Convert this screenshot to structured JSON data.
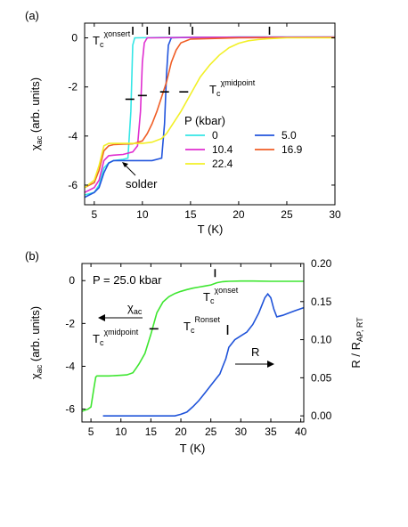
{
  "chart_data": [
    {
      "panel_label": "(a)",
      "type": "line",
      "xlabel": "T (K)",
      "ylabel": "χ_ac (arb. units)",
      "xlim": [
        4,
        30
      ],
      "ylim": [
        -6.8,
        0.6
      ],
      "xticks": [
        5,
        10,
        15,
        20,
        25,
        30
      ],
      "yticks": [
        0,
        -2,
        -4,
        -6
      ],
      "legend_title": "P (kbar)",
      "legend_position": "center-right",
      "annotations": {
        "tc_onset_base": "T",
        "tc_onset_sub": "c",
        "tc_onset_sup": "χonsert",
        "tc_mid_base": "T",
        "tc_mid_sub": "c",
        "tc_mid_sup": "χmidpoint",
        "solder": "solder"
      },
      "onset_marks_T": [
        9.0,
        10.5,
        12.8,
        15.2,
        23.2
      ],
      "midpoint_marks": [
        [
          8.7,
          -2.5
        ],
        [
          10.0,
          -2.35
        ],
        [
          12.3,
          -2.2
        ],
        [
          14.3,
          -2.2
        ]
      ],
      "series": [
        {
          "name": "0",
          "color": "#35e6e6",
          "x": [
            4,
            5,
            5.5,
            6,
            6.5,
            7,
            8,
            8.5,
            8.8,
            9.0,
            9.2,
            9.5,
            12,
            20,
            30
          ],
          "y": [
            -6.4,
            -6.3,
            -6.0,
            -5.3,
            -5.1,
            -5.0,
            -4.95,
            -4.9,
            -3.0,
            -0.3,
            0.0,
            0.0,
            0.02,
            0.03,
            0.03
          ]
        },
        {
          "name": "5.0",
          "color": "#2255dd",
          "x": [
            4,
            5,
            5.5,
            6,
            6.5,
            7,
            9,
            11,
            12,
            12.3,
            12.5,
            12.7,
            13,
            15,
            20,
            30
          ],
          "y": [
            -6.5,
            -6.3,
            -6.1,
            -5.5,
            -5.1,
            -5.0,
            -5.0,
            -5.0,
            -4.9,
            -3.5,
            -1.5,
            -0.3,
            0.0,
            0.02,
            0.03,
            0.03
          ]
        },
        {
          "name": "10.4",
          "color": "#e02ed0",
          "x": [
            4,
            5,
            5.5,
            6,
            6.5,
            7,
            8,
            9,
            9.5,
            9.8,
            10.0,
            10.2,
            10.5,
            11,
            15,
            30
          ],
          "y": [
            -6.3,
            -6.1,
            -5.8,
            -5.0,
            -4.8,
            -4.78,
            -4.75,
            -4.65,
            -4.4,
            -3.0,
            -1.0,
            -0.2,
            0.0,
            0.0,
            0.02,
            0.03
          ]
        },
        {
          "name": "16.9",
          "color": "#f05e26",
          "x": [
            4,
            5,
            5.5,
            6,
            6.5,
            7,
            8,
            9,
            10,
            10.5,
            11,
            11.5,
            12,
            12.5,
            13,
            13.5,
            14,
            15,
            20,
            30
          ],
          "y": [
            -6.1,
            -5.9,
            -5.4,
            -4.6,
            -4.4,
            -4.35,
            -4.33,
            -4.32,
            -4.2,
            -3.9,
            -3.5,
            -3.0,
            -2.4,
            -1.8,
            -1.0,
            -0.5,
            -0.2,
            -0.05,
            0.0,
            0.02
          ]
        },
        {
          "name": "22.4",
          "color": "#f2f028",
          "x": [
            4,
            5,
            5.5,
            6,
            6.5,
            7,
            8,
            10,
            11,
            12,
            12.5,
            13,
            14,
            15,
            16,
            17,
            18,
            19,
            20,
            21,
            22,
            23,
            25,
            30
          ],
          "y": [
            -6.1,
            -5.8,
            -5.2,
            -4.4,
            -4.3,
            -4.3,
            -4.3,
            -4.3,
            -4.25,
            -4.1,
            -3.9,
            -3.6,
            -3.0,
            -2.3,
            -1.6,
            -1.1,
            -0.7,
            -0.4,
            -0.22,
            -0.12,
            -0.07,
            -0.04,
            0.0,
            0.0
          ]
        }
      ]
    },
    {
      "panel_label": "(b)",
      "type": "line",
      "xlabel": "T (K)",
      "ylabel": "χ_ac (arb. units)",
      "ylabel_right": "R / R_AP, RT",
      "xlim": [
        3.5,
        40.5
      ],
      "ylim": [
        -6.6,
        0.8
      ],
      "ylim_right": [
        -0.008,
        0.2
      ],
      "xticks": [
        5,
        10,
        15,
        20,
        25,
        30,
        35,
        40
      ],
      "yticks": [
        0,
        -2,
        -4,
        -6
      ],
      "yticks_right": [
        0.0,
        0.05,
        0.1,
        0.15,
        0.2
      ],
      "yticks_right_labels": [
        "0.00",
        "0.05",
        "0.10",
        "0.15",
        "0.20"
      ],
      "annotations": {
        "pressure": "P = 25.0 kbar",
        "chi_label_base": "χ",
        "chi_label_sub": "ac",
        "tc_onset_base": "T",
        "tc_onset_sub": "c",
        "tc_onset_sup": "χonset",
        "tc_mid_base": "T",
        "tc_mid_sub": "c",
        "tc_mid_sup": "χmidpoint",
        "tc_ronset_base": "T",
        "tc_ronset_sub": "c",
        "tc_ronset_sup": "Ronset",
        "r_label": "R"
      },
      "onset_mark_T": 25.7,
      "midpoint_mark": [
        15.5,
        -2.25
      ],
      "ronset_mark_T": 27.8,
      "series": [
        {
          "name": "χ_ac",
          "axis": "left",
          "color": "#3ee630",
          "x": [
            3.5,
            4,
            4.5,
            5,
            5.5,
            5.8,
            6,
            8,
            10,
            11,
            12,
            12.5,
            13,
            14,
            15,
            16,
            17,
            18,
            19,
            20,
            21,
            22,
            23,
            24,
            25,
            26,
            27,
            28,
            30,
            32,
            35,
            38,
            40.5
          ],
          "y": [
            -6.1,
            -6.05,
            -6.0,
            -5.9,
            -5.0,
            -4.5,
            -4.45,
            -4.45,
            -4.42,
            -4.4,
            -4.3,
            -4.1,
            -3.9,
            -3.4,
            -2.5,
            -1.5,
            -1.0,
            -0.75,
            -0.6,
            -0.5,
            -0.42,
            -0.35,
            -0.3,
            -0.25,
            -0.2,
            -0.1,
            -0.05,
            -0.03,
            -0.02,
            -0.02,
            -0.03,
            -0.03,
            -0.03
          ]
        },
        {
          "name": "R",
          "axis": "right",
          "color": "#1f53d9",
          "x": [
            7,
            10,
            15,
            19,
            20,
            21,
            22,
            23,
            24,
            25,
            26,
            26.5,
            27,
            27.5,
            28,
            29,
            30,
            31,
            32,
            33,
            33.5,
            34,
            34.5,
            35,
            35.5,
            36,
            37,
            38,
            39,
            40.5
          ],
          "y": [
            0.0,
            0.0,
            0.0,
            0.0,
            0.002,
            0.005,
            0.012,
            0.02,
            0.03,
            0.04,
            0.05,
            0.055,
            0.065,
            0.075,
            0.09,
            0.1,
            0.105,
            0.11,
            0.12,
            0.135,
            0.145,
            0.155,
            0.16,
            0.155,
            0.14,
            0.13,
            0.132,
            0.135,
            0.138,
            0.142
          ]
        }
      ]
    }
  ]
}
